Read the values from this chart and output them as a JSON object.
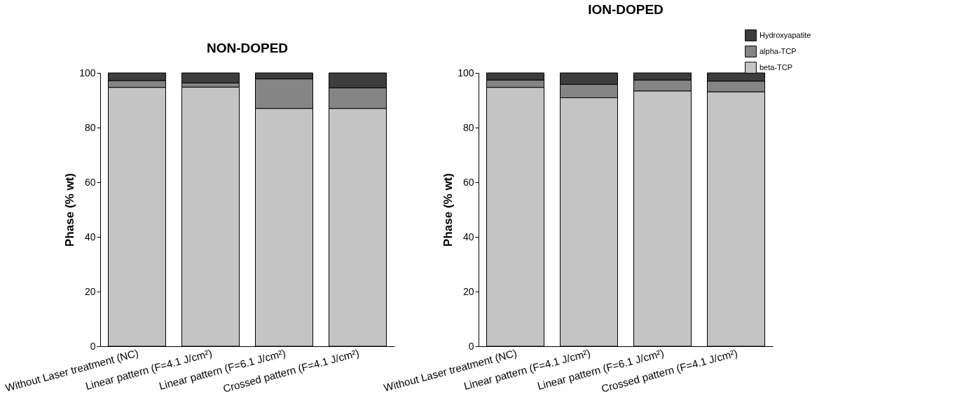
{
  "chart_data": [
    {
      "type": "bar",
      "title": "NON-DOPED",
      "ylabel": "Phase (% wt)",
      "stacked": true,
      "grid": false,
      "categories": [
        "Without Laser treatment (NC)",
        "Linear pattern (F=4.1 J/cm²)",
        "Linear pattern (F=6.1 J/cm²)",
        "Crossed pattern (F=4.1 J/cm²)"
      ],
      "ylim": [
        0,
        100
      ],
      "yticks": [
        0,
        20,
        40,
        60,
        80,
        100
      ],
      "series": [
        {
          "color": "#c4c4c4",
          "values": [
            94.7,
            94.8,
            87.0,
            87.0
          ]
        },
        {
          "color": "#858585",
          "values": [
            2.5,
            1.5,
            10.8,
            7.5
          ]
        },
        {
          "color": "#3d3d3d",
          "values": [
            2.8,
            3.7,
            2.2,
            5.5
          ]
        }
      ]
    },
    {
      "type": "bar",
      "title": "ION-DOPED",
      "ylabel": "Phase (% wt)",
      "stacked": true,
      "legend": "top right",
      "grid": false,
      "categories": [
        "Without Laser treatment (NC)",
        "Linear pattern (F=4.1 J/cm²)",
        "Linear pattern (F=6.1 J/cm²)",
        "Crossed pattern (F=4.1 J/cm²)"
      ],
      "ylim": [
        0,
        100
      ],
      "yticks": [
        0,
        20,
        40,
        60,
        80,
        100
      ],
      "series": [
        {
          "name": "beta-TCP",
          "color": "#c4c4c4",
          "values": [
            94.7,
            90.9,
            93.4,
            93.1
          ]
        },
        {
          "name": "alpha-TCP",
          "color": "#858585",
          "values": [
            2.7,
            4.9,
            4.0,
            3.9
          ]
        },
        {
          "name": "Hydroxyapatite",
          "color": "#3d3d3d",
          "values": [
            2.6,
            4.2,
            2.6,
            3.0
          ]
        }
      ]
    }
  ]
}
